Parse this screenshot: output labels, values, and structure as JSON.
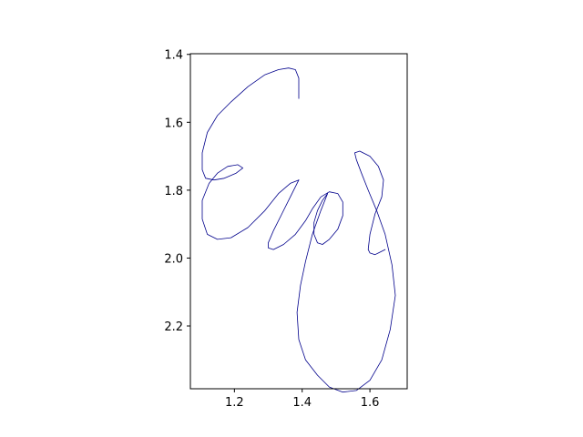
{
  "chart_data": {
    "type": "line",
    "title": "",
    "xlabel": "",
    "ylabel": "",
    "xlim": [
      1.07,
      1.71
    ],
    "ylim": [
      2.385,
      1.398
    ],
    "y_inverted": true,
    "grid": false,
    "line_color": "#00008B",
    "x_ticks": [
      {
        "value": 1.2,
        "label": "1.2"
      },
      {
        "value": 1.4,
        "label": "1.4"
      },
      {
        "value": 1.6,
        "label": "1.6"
      }
    ],
    "y_ticks": [
      {
        "value": 1.4,
        "label": "1.4"
      },
      {
        "value": 1.6,
        "label": "1.6"
      },
      {
        "value": 1.8,
        "label": "1.8"
      },
      {
        "value": 2.0,
        "label": "2.0"
      },
      {
        "value": 2.2,
        "label": "2.2"
      }
    ],
    "series": [
      {
        "x": [
          1.39,
          1.39,
          1.38,
          1.36,
          1.33,
          1.29,
          1.24,
          1.19,
          1.15,
          1.12,
          1.105,
          1.105,
          1.115,
          1.14,
          1.17,
          1.205,
          1.225,
          1.21,
          1.18,
          1.15,
          1.125,
          1.105,
          1.105,
          1.12,
          1.15,
          1.19,
          1.24,
          1.29,
          1.33,
          1.365,
          1.39
        ],
        "y": [
          1.53,
          1.47,
          1.445,
          1.44,
          1.445,
          1.46,
          1.495,
          1.54,
          1.58,
          1.63,
          1.69,
          1.74,
          1.765,
          1.77,
          1.765,
          1.75,
          1.735,
          1.725,
          1.73,
          1.75,
          1.78,
          1.83,
          1.885,
          1.93,
          1.945,
          1.94,
          1.91,
          1.86,
          1.81,
          1.78,
          1.77
        ]
      },
      {
        "x": [
          1.39,
          1.365,
          1.34,
          1.315,
          1.3,
          1.3,
          1.315,
          1.345,
          1.38,
          1.41,
          1.43,
          1.455,
          1.48,
          1.505,
          1.52,
          1.52,
          1.505,
          1.48,
          1.46,
          1.445,
          1.435,
          1.435,
          1.445,
          1.46,
          1.475
        ],
        "y": [
          1.77,
          1.82,
          1.87,
          1.92,
          1.955,
          1.97,
          1.975,
          1.96,
          1.93,
          1.89,
          1.855,
          1.82,
          1.805,
          1.81,
          1.835,
          1.875,
          1.915,
          1.945,
          1.96,
          1.955,
          1.93,
          1.895,
          1.86,
          1.83,
          1.81
        ]
      },
      {
        "x": [
          1.475,
          1.455,
          1.43,
          1.41,
          1.395,
          1.385,
          1.39,
          1.41,
          1.445,
          1.48,
          1.52,
          1.56,
          1.6,
          1.635,
          1.66,
          1.675,
          1.665,
          1.645,
          1.62,
          1.595,
          1.575,
          1.56,
          1.555,
          1.57,
          1.6,
          1.625,
          1.64,
          1.635,
          1.615,
          1.6,
          1.595,
          1.6,
          1.615,
          1.625,
          1.645
        ],
        "y": [
          1.81,
          1.86,
          1.93,
          2.01,
          2.08,
          2.16,
          2.24,
          2.3,
          2.345,
          2.38,
          2.395,
          2.39,
          2.36,
          2.3,
          2.21,
          2.11,
          2.02,
          1.93,
          1.86,
          1.8,
          1.75,
          1.71,
          1.69,
          1.685,
          1.7,
          1.73,
          1.77,
          1.82,
          1.87,
          1.93,
          1.975,
          1.985,
          1.99,
          1.985,
          1.975
        ]
      }
    ]
  }
}
